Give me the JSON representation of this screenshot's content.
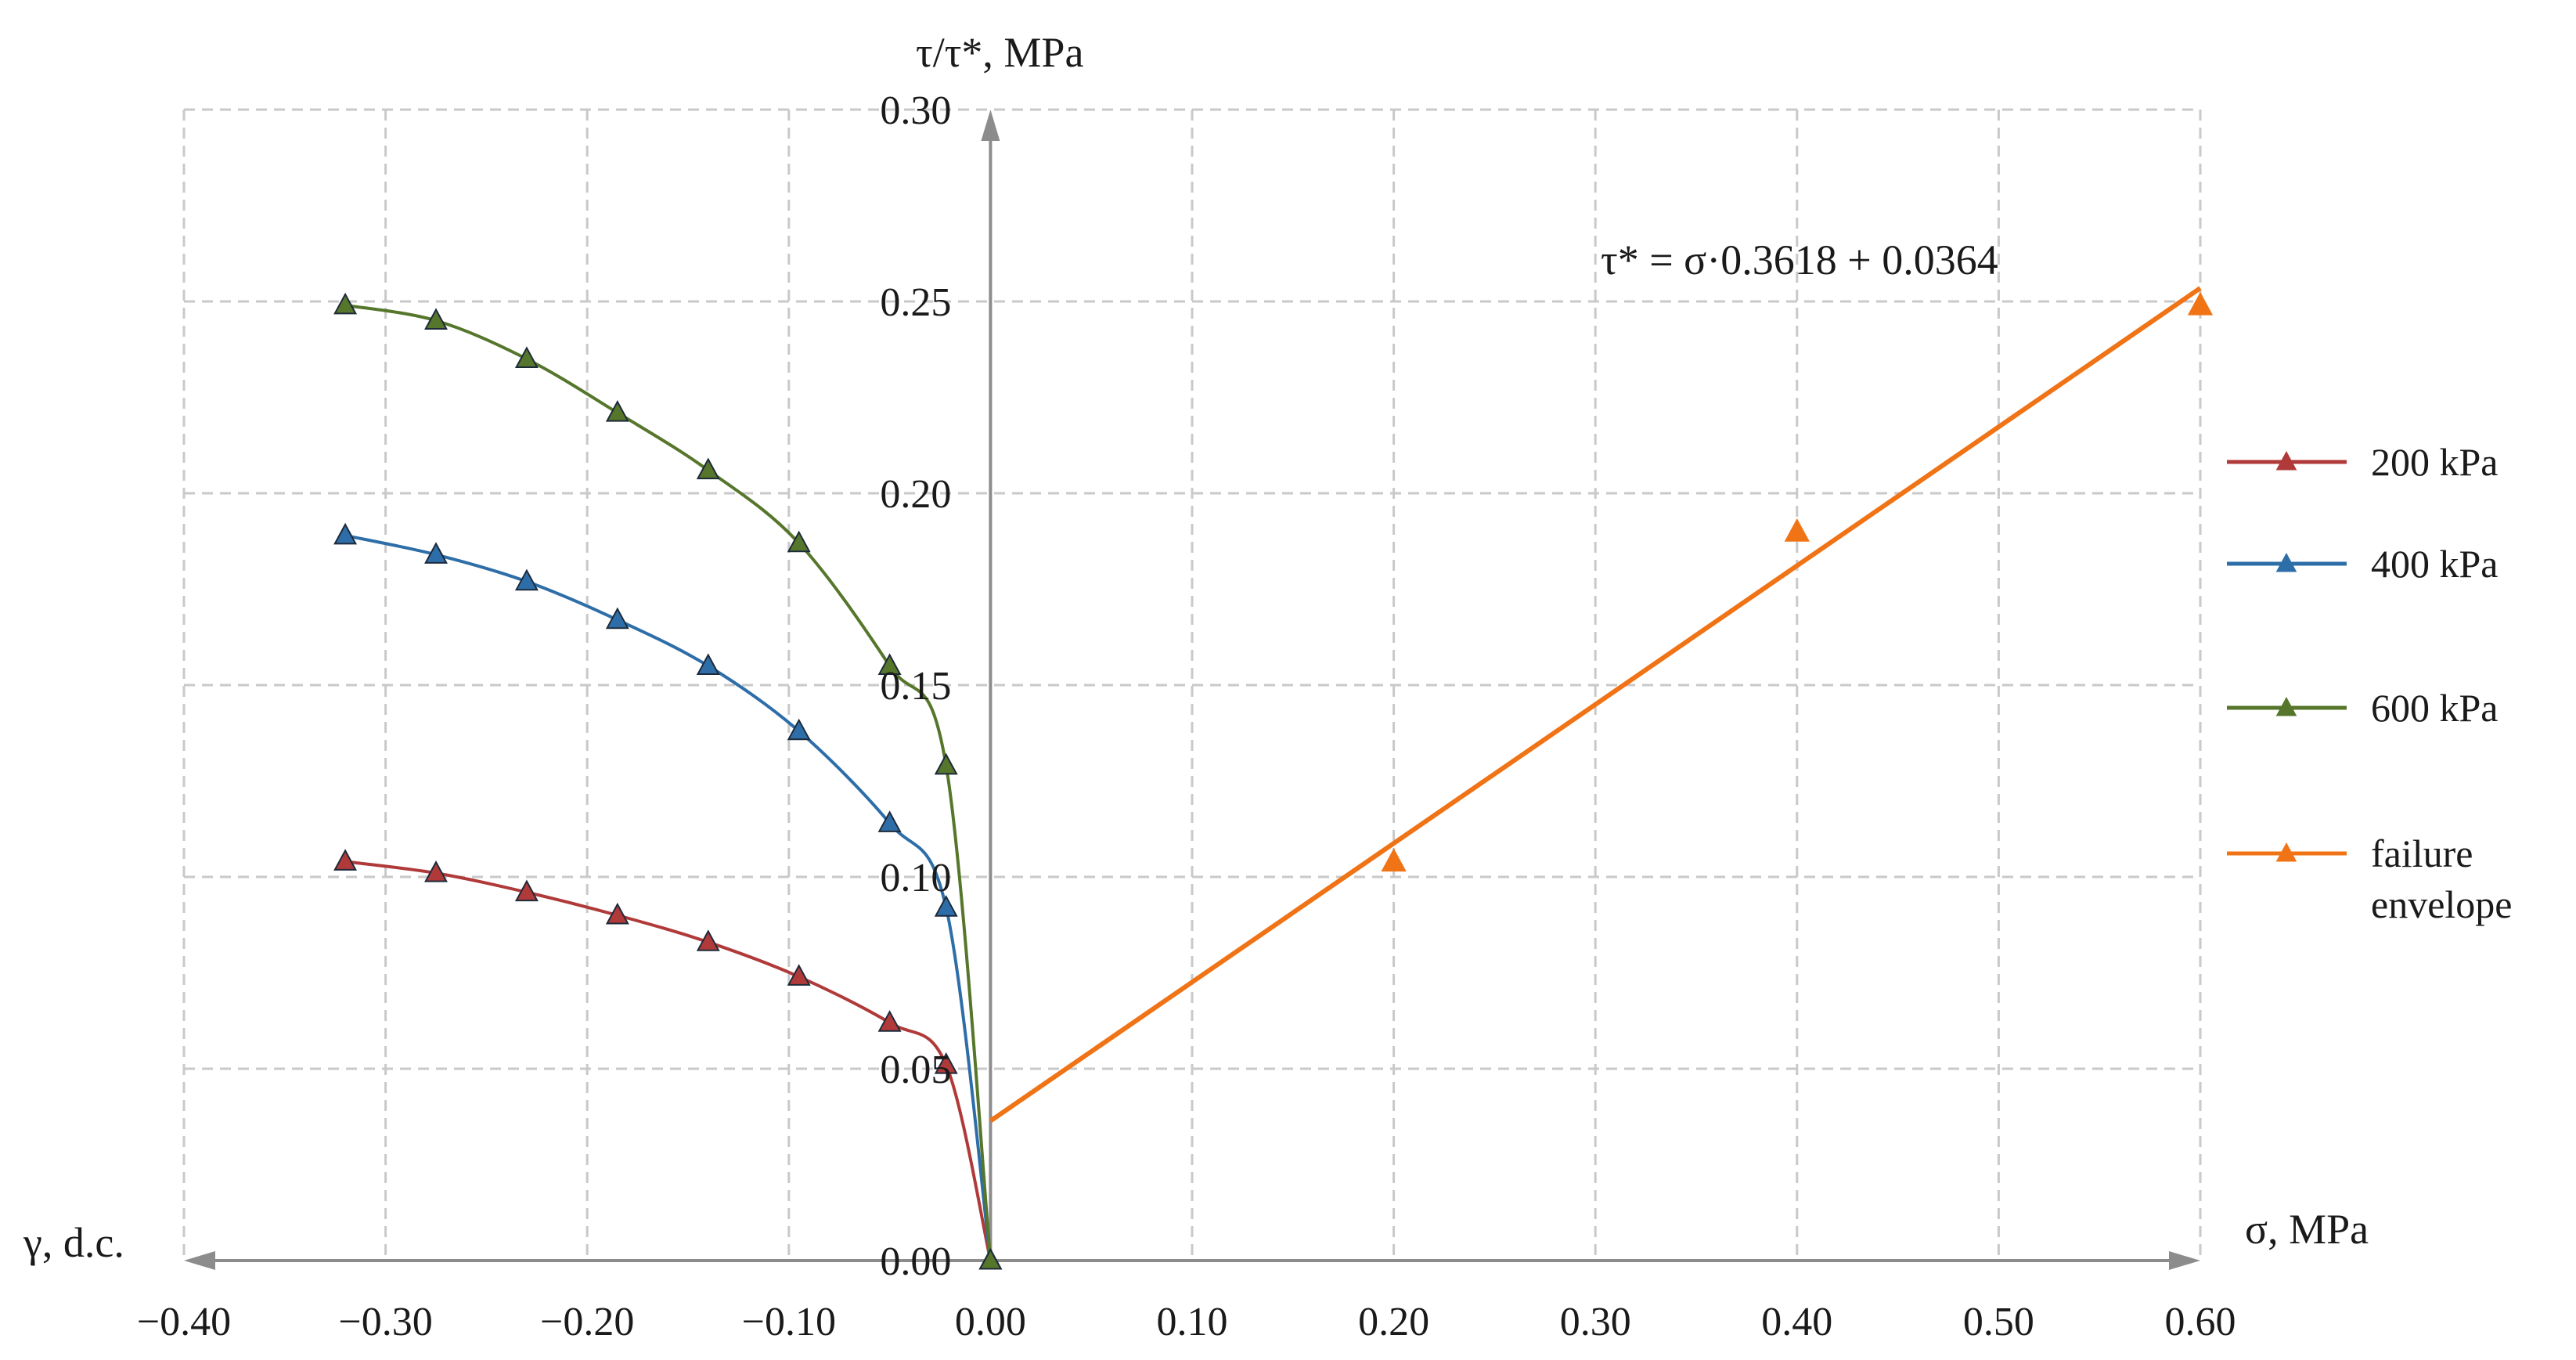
{
  "chart_data": {
    "type": "line",
    "y_axis_title": "τ/τ*, MPa",
    "x_right_label": "σ, MPa",
    "x_left_label": "γ, d.c.",
    "x_ticks": [
      "−0.40",
      "−0.30",
      "−0.20",
      "−0.10",
      "0.00",
      "0.10",
      "0.20",
      "0.30",
      "0.40",
      "0.50",
      "0.60"
    ],
    "x_tick_values": [
      -0.4,
      -0.3,
      -0.2,
      -0.1,
      0.0,
      0.1,
      0.2,
      0.3,
      0.4,
      0.5,
      0.6
    ],
    "y_ticks": [
      "0.00",
      "0.05",
      "0.10",
      "0.15",
      "0.20",
      "0.25",
      "0.30"
    ],
    "y_tick_values": [
      0.0,
      0.05,
      0.1,
      0.15,
      0.2,
      0.25,
      0.3
    ],
    "xlim": [
      -0.4,
      0.6
    ],
    "ylim": [
      0.0,
      0.3
    ],
    "grid": true,
    "legend_position": "right",
    "annotation": "τ* = σ·0.3618 + 0.0364",
    "series": [
      {
        "name": "200 kPa",
        "color": "#b03a3a",
        "marker": "triangle",
        "points": [
          [
            -0.32,
            0.104
          ],
          [
            -0.275,
            0.101
          ],
          [
            -0.23,
            0.096
          ],
          [
            -0.185,
            0.09
          ],
          [
            -0.14,
            0.083
          ],
          [
            -0.095,
            0.074
          ],
          [
            -0.05,
            0.062
          ],
          [
            -0.022,
            0.051
          ],
          [
            0.0,
            0.0
          ]
        ]
      },
      {
        "name": "400 kPa",
        "color": "#2e6ea8",
        "marker": "triangle",
        "points": [
          [
            -0.32,
            0.189
          ],
          [
            -0.275,
            0.184
          ],
          [
            -0.23,
            0.177
          ],
          [
            -0.185,
            0.167
          ],
          [
            -0.14,
            0.155
          ],
          [
            -0.095,
            0.138
          ],
          [
            -0.05,
            0.114
          ],
          [
            -0.022,
            0.092
          ],
          [
            0.0,
            0.0
          ]
        ]
      },
      {
        "name": "600 kPa",
        "color": "#55762b",
        "marker": "triangle",
        "points": [
          [
            -0.32,
            0.249
          ],
          [
            -0.275,
            0.245
          ],
          [
            -0.23,
            0.235
          ],
          [
            -0.185,
            0.221
          ],
          [
            -0.14,
            0.206
          ],
          [
            -0.095,
            0.187
          ],
          [
            -0.05,
            0.155
          ],
          [
            -0.022,
            0.129
          ],
          [
            0.0,
            0.0
          ]
        ]
      },
      {
        "name": "failure envelope",
        "color": "#f07316",
        "marker": "triangle",
        "points": [
          [
            0.2,
            0.104
          ],
          [
            0.4,
            0.19
          ],
          [
            0.6,
            0.249
          ]
        ],
        "fit_line": {
          "slope": 0.3618,
          "intercept": 0.0364,
          "x_range": [
            0.0,
            0.6
          ]
        }
      }
    ]
  }
}
